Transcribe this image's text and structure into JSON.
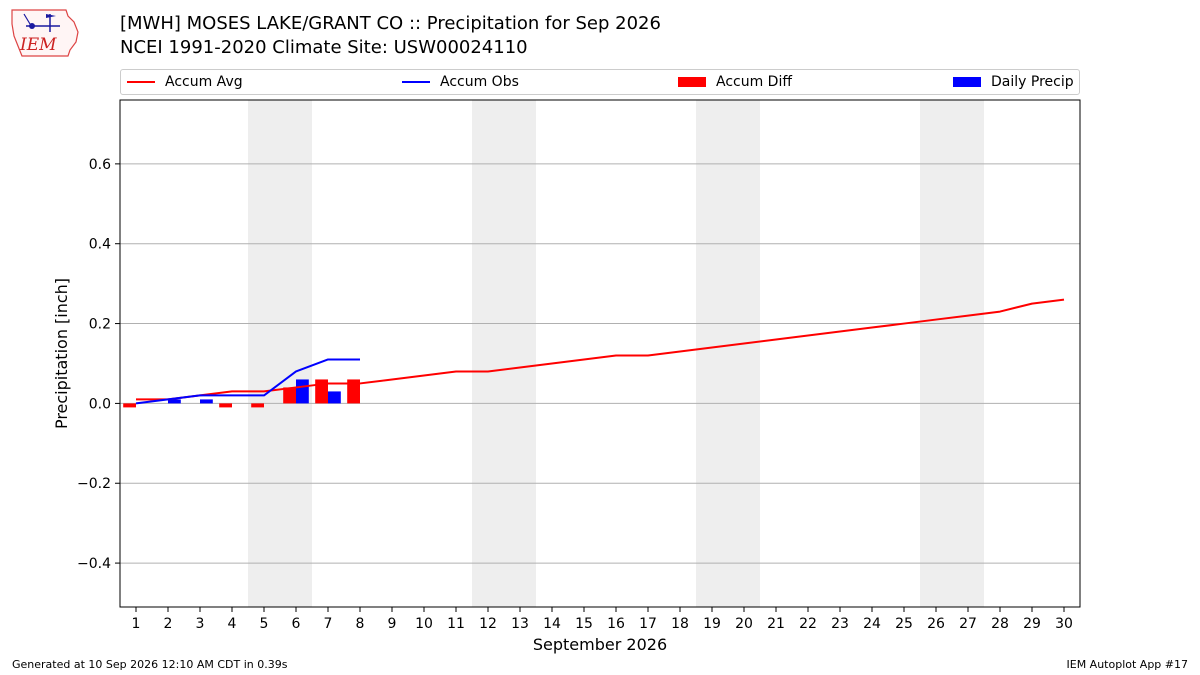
{
  "header": {
    "logo_text": "IEM",
    "title_line1": "[MWH] MOSES LAKE/GRANT CO :: Precipitation for Sep 2026",
    "title_line2": "NCEI 1991-2020 Climate Site: USW00024110"
  },
  "legend": {
    "accum_avg": "Accum Avg",
    "accum_obs": "Accum Obs",
    "accum_diff": "Accum Diff",
    "daily_precip": "Daily Precip"
  },
  "colors": {
    "accum_avg": "#ff0000",
    "accum_obs": "#0000ff",
    "accum_diff": "#ff0000",
    "daily_precip": "#0000ff",
    "weekend_shade": "#eeeeee",
    "grid": "#b0b0b0"
  },
  "footer": {
    "generated": "Generated at 10 Sep 2026 12:10 AM CDT in 0.39s",
    "app": "IEM Autoplot App #17"
  },
  "chart_data": {
    "type": "line",
    "xlabel": "September 2026",
    "ylabel": "Precipitation [inch]",
    "xlim": [
      0.5,
      30.5
    ],
    "ylim": [
      -0.51,
      0.76
    ],
    "yticks": [
      -0.4,
      -0.2,
      0.0,
      0.2,
      0.4,
      0.6
    ],
    "ytick_labels": [
      "−0.4",
      "−0.2",
      "0.0",
      "0.2",
      "0.4",
      "0.6"
    ],
    "x": [
      1,
      2,
      3,
      4,
      5,
      6,
      7,
      8,
      9,
      10,
      11,
      12,
      13,
      14,
      15,
      16,
      17,
      18,
      19,
      20,
      21,
      22,
      23,
      24,
      25,
      26,
      27,
      28,
      29,
      30
    ],
    "weekend_days": [
      5,
      6,
      12,
      13,
      19,
      20,
      26,
      27
    ],
    "grid": "horizontal",
    "legend_position": "top",
    "series": [
      {
        "name": "Accum Avg",
        "type": "line",
        "x": [
          1,
          2,
          3,
          4,
          5,
          6,
          7,
          8,
          9,
          10,
          11,
          12,
          13,
          14,
          15,
          16,
          17,
          18,
          19,
          20,
          21,
          22,
          23,
          24,
          25,
          26,
          27,
          28,
          29,
          30
        ],
        "values": [
          0.01,
          0.01,
          0.02,
          0.03,
          0.03,
          0.04,
          0.05,
          0.05,
          0.06,
          0.07,
          0.08,
          0.08,
          0.09,
          0.1,
          0.11,
          0.12,
          0.12,
          0.13,
          0.14,
          0.15,
          0.16,
          0.17,
          0.18,
          0.19,
          0.2,
          0.21,
          0.22,
          0.23,
          0.25,
          0.26
        ]
      },
      {
        "name": "Accum Obs",
        "type": "line",
        "x": [
          1,
          2,
          3,
          4,
          5,
          6,
          7,
          8
        ],
        "values": [
          0.0,
          0.01,
          0.02,
          0.02,
          0.02,
          0.08,
          0.11,
          0.11
        ]
      },
      {
        "name": "Accum Diff",
        "type": "bar",
        "x": [
          1,
          2,
          3,
          4,
          5,
          6,
          7,
          8
        ],
        "values": [
          -0.01,
          0.0,
          0.0,
          -0.01,
          -0.01,
          0.04,
          0.06,
          0.06
        ]
      },
      {
        "name": "Daily Precip",
        "type": "bar",
        "x": [
          1,
          2,
          3,
          4,
          5,
          6,
          7,
          8
        ],
        "values": [
          0.0,
          0.01,
          0.01,
          0.0,
          0.0,
          0.06,
          0.03,
          0.0
        ]
      }
    ]
  }
}
